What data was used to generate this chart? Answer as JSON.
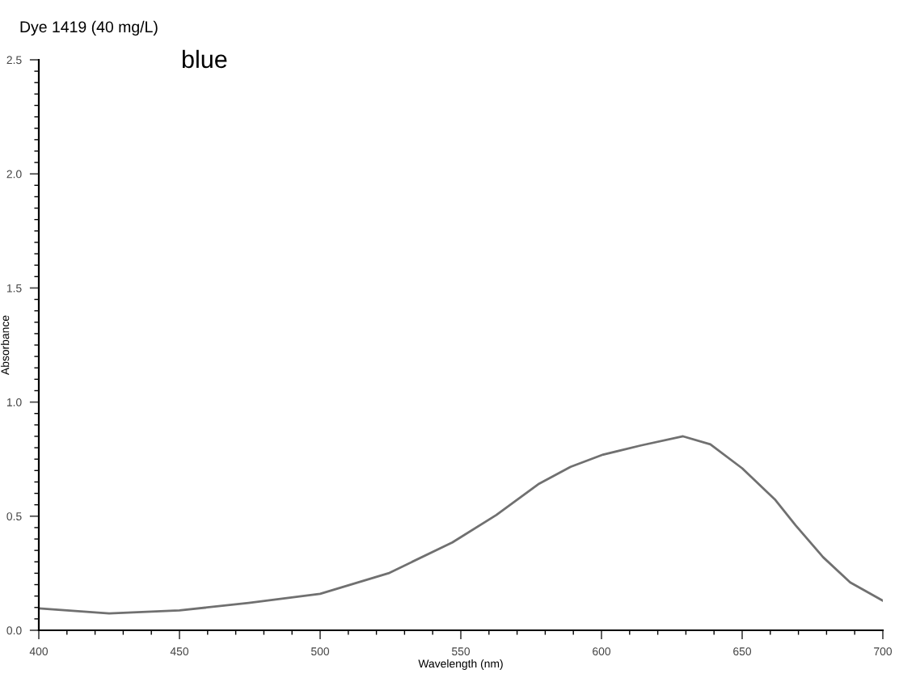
{
  "chart_data": {
    "type": "line",
    "title": "Dye 1419 (40 mg/L)",
    "annotations": [
      "blue"
    ],
    "xlabel": "Wavelength (nm)",
    "ylabel": "Absorbance",
    "x": [
      400,
      425,
      450,
      474.6,
      500,
      524.3,
      547,
      562.6,
      577.5,
      589,
      600.6,
      614,
      629,
      638.7,
      650,
      661.6,
      669,
      678.8,
      688.4,
      700
    ],
    "series": [
      {
        "color": "#707070",
        "values": [
          0.096,
          0.074,
          0.087,
          0.12,
          0.16,
          0.25,
          0.385,
          0.505,
          0.64,
          0.716,
          0.77,
          0.81,
          0.85,
          0.815,
          0.71,
          0.574,
          0.46,
          0.32,
          0.21,
          0.13
        ]
      }
    ],
    "xlim": [
      400,
      700
    ],
    "ylim": [
      0,
      2.5
    ],
    "xticks": [
      400,
      450,
      500,
      550,
      600,
      650,
      700
    ],
    "yticks": [
      {
        "value": 0,
        "label": "0.0"
      },
      0.5,
      {
        "value": 1,
        "label": "1.0"
      },
      1.5,
      {
        "value": 2,
        "label": "2.0"
      },
      2.5
    ],
    "grid": false,
    "marker": "none",
    "line_style": "solid"
  }
}
